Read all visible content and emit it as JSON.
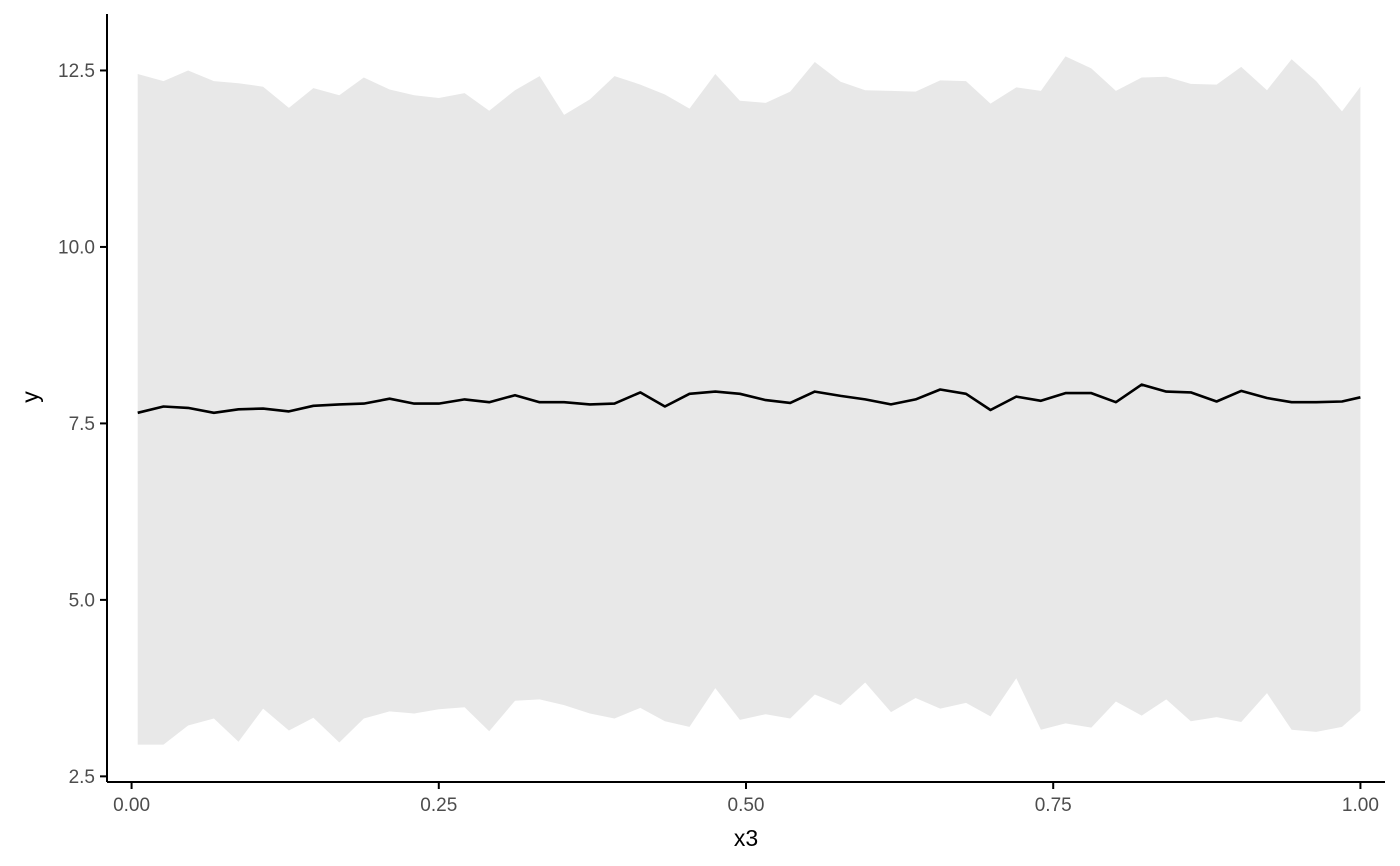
{
  "chart_data": {
    "type": "line",
    "xlabel": "x3",
    "ylabel": "y",
    "xlim": [
      -0.02,
      1.02
    ],
    "ylim": [
      2.42,
      13.3
    ],
    "x_ticks": [
      {
        "value": 0.0,
        "label": "0.00"
      },
      {
        "value": 0.25,
        "label": "0.25"
      },
      {
        "value": 0.5,
        "label": "0.50"
      },
      {
        "value": 0.75,
        "label": "0.75"
      },
      {
        "value": 1.0,
        "label": "1.00"
      }
    ],
    "y_ticks": [
      {
        "value": 2.5,
        "label": "2.5"
      },
      {
        "value": 5.0,
        "label": "5.0"
      },
      {
        "value": 7.5,
        "label": "7.5"
      },
      {
        "value": 10.0,
        "label": "10.0"
      },
      {
        "value": 12.5,
        "label": "12.5"
      }
    ],
    "grid": false,
    "legend": "none",
    "colors": {
      "line": "#000000",
      "ribbon": "#e8e8e8",
      "axis": "#000000",
      "tick_label": "#4d4d4d"
    },
    "x": [
      0.005,
      0.026,
      0.046,
      0.067,
      0.087,
      0.107,
      0.128,
      0.148,
      0.169,
      0.189,
      0.21,
      0.23,
      0.25,
      0.271,
      0.291,
      0.312,
      0.332,
      0.352,
      0.373,
      0.393,
      0.414,
      0.434,
      0.454,
      0.475,
      0.495,
      0.516,
      0.536,
      0.556,
      0.577,
      0.597,
      0.618,
      0.638,
      0.658,
      0.679,
      0.699,
      0.72,
      0.74,
      0.76,
      0.781,
      0.801,
      0.822,
      0.842,
      0.862,
      0.883,
      0.903,
      0.924,
      0.944,
      0.964,
      0.985,
      1.0
    ],
    "series": [
      {
        "values": [
          7.65,
          7.74,
          7.72,
          7.65,
          7.7,
          7.71,
          7.67,
          7.75,
          7.77,
          7.78,
          7.85,
          7.78,
          7.78,
          7.84,
          7.8,
          7.9,
          7.8,
          7.8,
          7.77,
          7.78,
          7.94,
          7.74,
          7.92,
          7.95,
          7.92,
          7.83,
          7.79,
          7.95,
          7.89,
          7.84,
          7.77,
          7.84,
          7.98,
          7.92,
          7.69,
          7.88,
          7.82,
          7.93,
          7.93,
          7.8,
          8.05,
          7.95,
          7.94,
          7.81,
          7.96,
          7.86,
          7.8,
          7.8,
          7.81,
          7.87
        ]
      }
    ],
    "band": {
      "upper": [
        12.45,
        12.35,
        12.5,
        12.35,
        12.32,
        12.27,
        11.97,
        12.25,
        12.15,
        12.4,
        12.23,
        12.15,
        12.11,
        12.18,
        11.93,
        12.22,
        12.42,
        11.87,
        12.09,
        12.42,
        12.3,
        12.16,
        11.96,
        12.45,
        12.07,
        12.04,
        12.2,
        12.62,
        12.34,
        12.22,
        12.21,
        12.2,
        12.36,
        12.35,
        12.03,
        12.26,
        12.21,
        12.7,
        12.53,
        12.21,
        12.4,
        12.41,
        12.31,
        12.3,
        12.55,
        12.22,
        12.66,
        12.35,
        11.92,
        12.27
      ],
      "lower": [
        2.95,
        2.95,
        3.22,
        3.32,
        2.99,
        3.46,
        3.15,
        3.33,
        2.98,
        3.32,
        3.42,
        3.39,
        3.45,
        3.48,
        3.14,
        3.57,
        3.59,
        3.51,
        3.39,
        3.32,
        3.47,
        3.28,
        3.2,
        3.75,
        3.3,
        3.38,
        3.32,
        3.66,
        3.51,
        3.83,
        3.41,
        3.61,
        3.46,
        3.54,
        3.35,
        3.89,
        3.16,
        3.25,
        3.19,
        3.56,
        3.36,
        3.59,
        3.28,
        3.34,
        3.27,
        3.68,
        3.16,
        3.13,
        3.2,
        3.43
      ]
    }
  }
}
